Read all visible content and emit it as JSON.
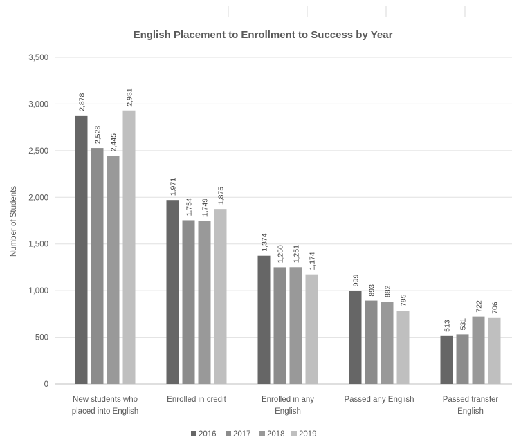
{
  "chart_data": {
    "type": "bar",
    "title": "English Placement to Enrollment to Success by Year",
    "xlabel": "",
    "ylabel": "Number of Students",
    "ylim": [
      0,
      3500
    ],
    "yticks": [
      "0",
      "500",
      "1,000",
      "1,500",
      "2,000",
      "2,500",
      "3,000",
      "3,500"
    ],
    "grid": true,
    "legend_position": "bottom",
    "categories": [
      [
        "New students who",
        "placed into English"
      ],
      [
        "Enrolled in credit"
      ],
      [
        "Enrolled in any",
        "English"
      ],
      [
        "Passed any English"
      ],
      [
        "Passed transfer",
        "English"
      ]
    ],
    "series": [
      {
        "name": "2016",
        "color": "#666666",
        "values": [
          2878,
          1971,
          1374,
          999,
          513
        ],
        "labels": [
          "2,878",
          "1,971",
          "1,374",
          "999",
          "513"
        ]
      },
      {
        "name": "2017",
        "color": "#8c8c8c",
        "values": [
          2528,
          1754,
          1250,
          893,
          531
        ],
        "labels": [
          "2,528",
          "1,754",
          "1,250",
          "893",
          "531"
        ]
      },
      {
        "name": "2018",
        "color": "#999999",
        "values": [
          2445,
          1749,
          1251,
          882,
          722
        ],
        "labels": [
          "2,445",
          "1,749",
          "1,251",
          "882",
          "722"
        ]
      },
      {
        "name": "2019",
        "color": "#bfbfbf",
        "values": [
          2931,
          1875,
          1174,
          785,
          706
        ],
        "labels": [
          "2,931",
          "1,875",
          "1,174",
          "785",
          "706"
        ]
      }
    ]
  }
}
